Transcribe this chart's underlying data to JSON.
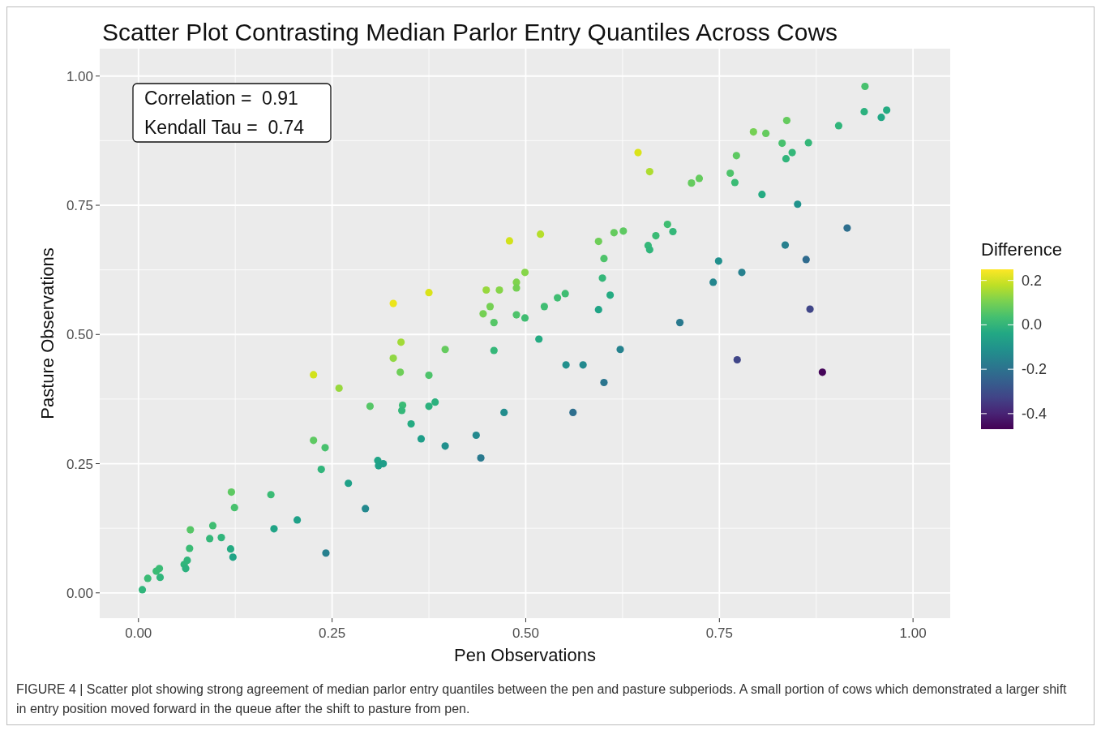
{
  "chart_data": {
    "type": "scatter",
    "title": "Scatter Plot Contrasting Median Parlor Entry Quantiles Across Cows",
    "xlabel": "Pen Observations",
    "ylabel": "Pasture Observations",
    "clabel": "Difference",
    "annotations": [
      "Correlation =  0.91",
      "Kendall Tau =  0.74",
      "FIGURE 4 | Scatter plot showing strong agreement of median parlor entry quantiles between the pen and pasture subperiods. A small portion of cows which demonstrated a larger shift in entry position moved forward in the queue after the shift to pasture from pen."
    ],
    "xlim": [
      -0.05,
      1.048
    ],
    "ylim": [
      -0.049,
      1.053
    ],
    "xticks": [
      {
        "value": 0,
        "label": "0.00"
      },
      {
        "value": 0.25,
        "label": "0.25"
      },
      {
        "value": 0.5,
        "label": "0.50"
      },
      {
        "value": 0.75,
        "label": "0.75"
      },
      {
        "value": 1,
        "label": "1.00"
      }
    ],
    "yticks": [
      {
        "value": 0,
        "label": "0.00"
      },
      {
        "value": 0.25,
        "label": "0.25"
      },
      {
        "value": 0.5,
        "label": "0.50"
      },
      {
        "value": 0.75,
        "label": "0.75"
      },
      {
        "value": 1,
        "label": "1.00"
      }
    ],
    "clim": [
      -0.47,
      0.25
    ],
    "cticks": [
      -0.4,
      -0.2,
      {
        "value": 0,
        "label": "0.0"
      },
      0.2
    ],
    "grid": true,
    "marker": "circle",
    "x": [
      0.005,
      0.012,
      0.023,
      0.027,
      0.028,
      0.059,
      0.061,
      0.063,
      0.066,
      0.067,
      0.092,
      0.096,
      0.107,
      0.119,
      0.122,
      0.12,
      0.124,
      0.171,
      0.175,
      0.205,
      0.242,
      0.271,
      0.293,
      0.309,
      0.31,
      0.316,
      0.236,
      0.226,
      0.241,
      0.226,
      0.259,
      0.299,
      0.329,
      0.339,
      0.338,
      0.341,
      0.34,
      0.375,
      0.352,
      0.365,
      0.375,
      0.383,
      0.396,
      0.436,
      0.442,
      0.329,
      0.375,
      0.396,
      0.459,
      0.472,
      0.517,
      0.552,
      0.574,
      0.601,
      0.561,
      0.622,
      0.445,
      0.454,
      0.459,
      0.449,
      0.466,
      0.488,
      0.488,
      0.499,
      0.488,
      0.499,
      0.524,
      0.541,
      0.551,
      0.594,
      0.599,
      0.609,
      0.601,
      0.594,
      0.614,
      0.626,
      0.479,
      0.519,
      0.699,
      0.645,
      0.66,
      0.658,
      0.66,
      0.668,
      0.683,
      0.69,
      0.714,
      0.724,
      0.749,
      0.742,
      0.779,
      0.764,
      0.77,
      0.772,
      0.794,
      0.81,
      0.805,
      0.837,
      0.831,
      0.844,
      0.836,
      0.865,
      0.851,
      0.835,
      0.862,
      0.867,
      0.904,
      0.915,
      0.938,
      0.937,
      0.959,
      0.966,
      0.773,
      0.883
    ],
    "values": [
      0.006,
      0.028,
      0.042,
      0.047,
      0.03,
      0.055,
      0.047,
      0.063,
      0.086,
      0.122,
      0.105,
      0.13,
      0.107,
      0.085,
      0.069,
      0.195,
      0.165,
      0.19,
      0.124,
      0.141,
      0.077,
      0.212,
      0.163,
      0.256,
      0.246,
      0.25,
      0.239,
      0.295,
      0.281,
      0.422,
      0.396,
      0.361,
      0.454,
      0.485,
      0.427,
      0.363,
      0.353,
      0.421,
      0.327,
      0.298,
      0.361,
      0.369,
      0.284,
      0.305,
      0.261,
      0.56,
      0.581,
      0.471,
      0.469,
      0.349,
      0.491,
      0.441,
      0.441,
      0.407,
      0.349,
      0.471,
      0.54,
      0.554,
      0.523,
      0.586,
      0.586,
      0.601,
      0.59,
      0.62,
      0.538,
      0.532,
      0.554,
      0.571,
      0.579,
      0.548,
      0.609,
      0.576,
      0.647,
      0.68,
      0.697,
      0.7,
      0.681,
      0.694,
      0.523,
      0.852,
      0.815,
      0.672,
      0.664,
      0.691,
      0.713,
      0.699,
      0.793,
      0.802,
      0.642,
      0.601,
      0.62,
      0.812,
      0.794,
      0.846,
      0.892,
      0.889,
      0.771,
      0.914,
      0.87,
      0.852,
      0.84,
      0.871,
      0.752,
      0.673,
      0.645,
      0.549,
      0.904,
      0.706,
      0.98,
      0.931,
      0.92,
      0.934,
      0.451,
      0.427
    ],
    "cvalues": [
      0,
      0.02,
      0.02,
      0.02,
      0,
      0,
      -0.01,
      0,
      0.02,
      0.06,
      0.01,
      0.03,
      0,
      -0.03,
      -0.05,
      0.07,
      0.04,
      0.02,
      -0.05,
      -0.06,
      -0.16,
      -0.06,
      -0.13,
      -0.05,
      -0.06,
      -0.07,
      0,
      0.07,
      0.04,
      0.2,
      0.14,
      0.06,
      0.13,
      0.15,
      0.09,
      0.02,
      0.01,
      0.05,
      -0.03,
      -0.07,
      -0.01,
      -0.01,
      -0.11,
      -0.13,
      -0.18,
      0.23,
      0.21,
      0.08,
      0.01,
      -0.12,
      -0.03,
      -0.11,
      -0.13,
      -0.19,
      -0.21,
      -0.15,
      0.1,
      0.1,
      0.06,
      0.14,
      0.12,
      0.11,
      0.1,
      0.12,
      0.05,
      0.03,
      0.03,
      0.03,
      0.03,
      -0.05,
      0.01,
      -0.03,
      0.05,
      0.09,
      0.08,
      0.07,
      0.2,
      0.17,
      -0.18,
      0.21,
      0.16,
      0.01,
      0,
      0.02,
      0.03,
      0.01,
      0.08,
      0.08,
      -0.11,
      -0.14,
      -0.16,
      0.05,
      0.02,
      0.07,
      0.1,
      0.08,
      -0.03,
      0.08,
      0.04,
      0.01,
      0,
      0.01,
      -0.1,
      -0.16,
      -0.22,
      -0.32,
      0,
      -0.21,
      0.04,
      -0.01,
      -0.04,
      -0.03,
      -0.32,
      -0.46
    ]
  }
}
